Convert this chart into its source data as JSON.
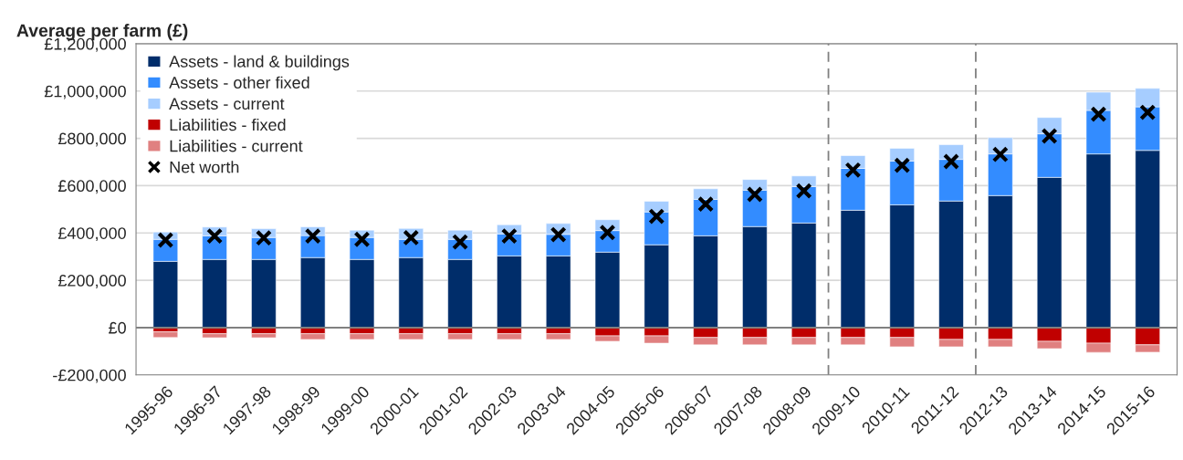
{
  "chart_data": {
    "type": "bar",
    "stacked": true,
    "ylabel": "Average per farm (£)",
    "categories": [
      "1995-96",
      "1996-97",
      "1997-98",
      "1998-99",
      "1999-00",
      "2000-01",
      "2001-02",
      "2002-03",
      "2003-04",
      "2004-05",
      "2005-06",
      "2006-07",
      "2007-08",
      "2008-09",
      "2009-10",
      "2010-11",
      "2011-12",
      "2012-13",
      "2013-14",
      "2014-15",
      "2015-16"
    ],
    "series": [
      {
        "name": "Assets - land & buildings",
        "color": "#002d6a",
        "values": [
          280000,
          288000,
          288000,
          296000,
          288000,
          296000,
          288000,
          303000,
          303000,
          319000,
          350000,
          388000,
          427000,
          442000,
          496000,
          519000,
          535000,
          558000,
          635000,
          734000,
          749000
        ]
      },
      {
        "name": "Assets - other fixed",
        "color": "#338cff",
        "values": [
          93000,
          100000,
          93000,
          93000,
          93000,
          77000,
          85000,
          93000,
          91000,
          91000,
          139000,
          154000,
          154000,
          154000,
          177000,
          185000,
          176000,
          176000,
          184000,
          184000,
          184000
        ]
      },
      {
        "name": "Assets - current",
        "color": "#a6cdff",
        "values": [
          31000,
          37000,
          37000,
          37000,
          31000,
          46000,
          39000,
          39000,
          46000,
          46000,
          45000,
          45000,
          45000,
          45000,
          54000,
          54000,
          62000,
          69000,
          69000,
          77000,
          78000
        ]
      },
      {
        "name": "Liabilities - fixed",
        "color": "#c00000",
        "values": [
          -18000,
          -26000,
          -26000,
          -26000,
          -26000,
          -26000,
          -26000,
          -26000,
          -26000,
          -35000,
          -35000,
          -42000,
          -42000,
          -42000,
          -42000,
          -42000,
          -50000,
          -50000,
          -58000,
          -66000,
          -73000
        ]
      },
      {
        "name": "Liabilities - current",
        "color": "#e08080",
        "values": [
          -24000,
          -17000,
          -17000,
          -24000,
          -24000,
          -24000,
          -24000,
          -24000,
          -24000,
          -23000,
          -31000,
          -31000,
          -31000,
          -31000,
          -31000,
          -39000,
          -31000,
          -31000,
          -31000,
          -39000,
          -31000
        ]
      },
      {
        "name": "Net worth",
        "type": "scatter",
        "marker": "cross",
        "color": "#000000",
        "values": [
          370000,
          387000,
          379000,
          387000,
          373000,
          380000,
          362000,
          387000,
          393000,
          402000,
          470000,
          522000,
          563000,
          578000,
          666000,
          686000,
          702000,
          732000,
          810000,
          902000,
          910000
        ]
      }
    ],
    "ylim": [
      -200000,
      1200000
    ],
    "yticks": [
      {
        "value": -200000,
        "label": "-£200,000"
      },
      {
        "value": 0,
        "label": "£0"
      },
      {
        "value": 200000,
        "label": "£200,000"
      },
      {
        "value": 400000,
        "label": "£400,000"
      },
      {
        "value": 600000,
        "label": "£600,000"
      },
      {
        "value": 800000,
        "label": "£800,000"
      },
      {
        "value": 1000000,
        "label": "£1,000,000"
      },
      {
        "value": 1200000,
        "label": "£1,200,000"
      }
    ],
    "grid": "y",
    "legend": "top left"
  }
}
